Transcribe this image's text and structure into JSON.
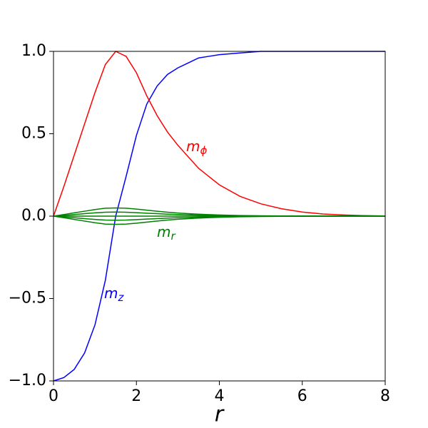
{
  "chart_data": {
    "type": "line",
    "x_label": "r",
    "x": [
      0,
      0.25,
      0.5,
      0.75,
      1,
      1.25,
      1.5,
      1.75,
      2,
      2.25,
      2.5,
      2.75,
      3,
      3.25,
      3.5,
      3.75,
      4,
      4.5,
      5,
      5.5,
      6,
      6.5,
      7,
      7.5,
      8
    ],
    "series": [
      {
        "color": "#0000ff",
        "values": [
          -1,
          -0.98,
          -0.93,
          -0.83,
          -0.66,
          -0.39,
          0,
          0.24,
          0.49,
          0.68,
          0.79,
          0.86,
          0.9,
          0.93,
          0.96,
          0.97,
          0.98,
          0.99,
          1,
          1,
          1,
          1,
          1,
          1,
          1
        ]
      },
      {
        "color": "#ff0000",
        "values": [
          0,
          0.18,
          0.37,
          0.56,
          0.75,
          0.92,
          1,
          0.97,
          0.87,
          0.73,
          0.61,
          0.51,
          0.43,
          0.36,
          0.29,
          0.24,
          0.19,
          0.12,
          0.075,
          0.045,
          0.025,
          0.013,
          0.007,
          0.003,
          0.001
        ]
      },
      {
        "color": "#008000",
        "values": [
          0,
          0.01,
          0.02,
          0.03,
          0.04,
          0.048,
          0.05,
          0.048,
          0.043,
          0.036,
          0.03,
          0.024,
          0.019,
          0.015,
          0.012,
          0.009,
          0.007,
          0.004,
          0.002,
          0.001,
          0.001,
          0,
          0,
          0,
          0
        ]
      },
      {
        "color": "#008000",
        "values": [
          0,
          0.005,
          0.01,
          0.015,
          0.02,
          0.024,
          0.025,
          0.024,
          0.021,
          0.018,
          0.015,
          0.012,
          0.01,
          0.008,
          0.006,
          0.005,
          0.004,
          0.002,
          0.001,
          0,
          0,
          0,
          0,
          0,
          0
        ]
      },
      {
        "color": "#008000",
        "values": [
          0,
          0,
          0,
          0,
          0,
          0,
          0,
          0,
          0,
          0,
          0,
          0,
          0,
          0,
          0,
          0,
          0,
          0,
          0,
          0,
          0,
          0,
          0,
          0,
          0
        ]
      },
      {
        "color": "#008000",
        "values": [
          0,
          -0.005,
          -0.01,
          -0.015,
          -0.02,
          -0.024,
          -0.025,
          -0.024,
          -0.021,
          -0.018,
          -0.015,
          -0.012,
          -0.01,
          -0.008,
          -0.006,
          -0.005,
          -0.004,
          -0.002,
          -0.001,
          0,
          0,
          0,
          0,
          0,
          0
        ]
      },
      {
        "color": "#008000",
        "values": [
          0,
          -0.01,
          -0.02,
          -0.03,
          -0.04,
          -0.048,
          -0.05,
          -0.048,
          -0.043,
          -0.036,
          -0.03,
          -0.024,
          -0.019,
          -0.015,
          -0.012,
          -0.009,
          -0.007,
          -0.004,
          -0.002,
          -0.001,
          -0.001,
          0,
          0,
          0,
          0
        ]
      }
    ],
    "annotations": [
      {
        "text": "m",
        "subscript": "ϕ",
        "color": "#ff0000"
      },
      {
        "text": "m",
        "subscript": "r",
        "color": "#008000"
      },
      {
        "text": "m",
        "subscript": "z",
        "color": "#0000ff"
      }
    ],
    "xlim": [
      0,
      8
    ],
    "xticks": [
      0,
      2,
      4,
      6,
      8
    ],
    "ylim": [
      -1,
      1
    ],
    "yticks": [
      {
        "value": -1,
        "label": "−1.0"
      },
      {
        "value": -0.5,
        "label": "−0.5"
      },
      {
        "value": 0,
        "label": "0.0"
      },
      0.5,
      {
        "value": 1,
        "label": "1.0"
      }
    ],
    "grid": false
  }
}
